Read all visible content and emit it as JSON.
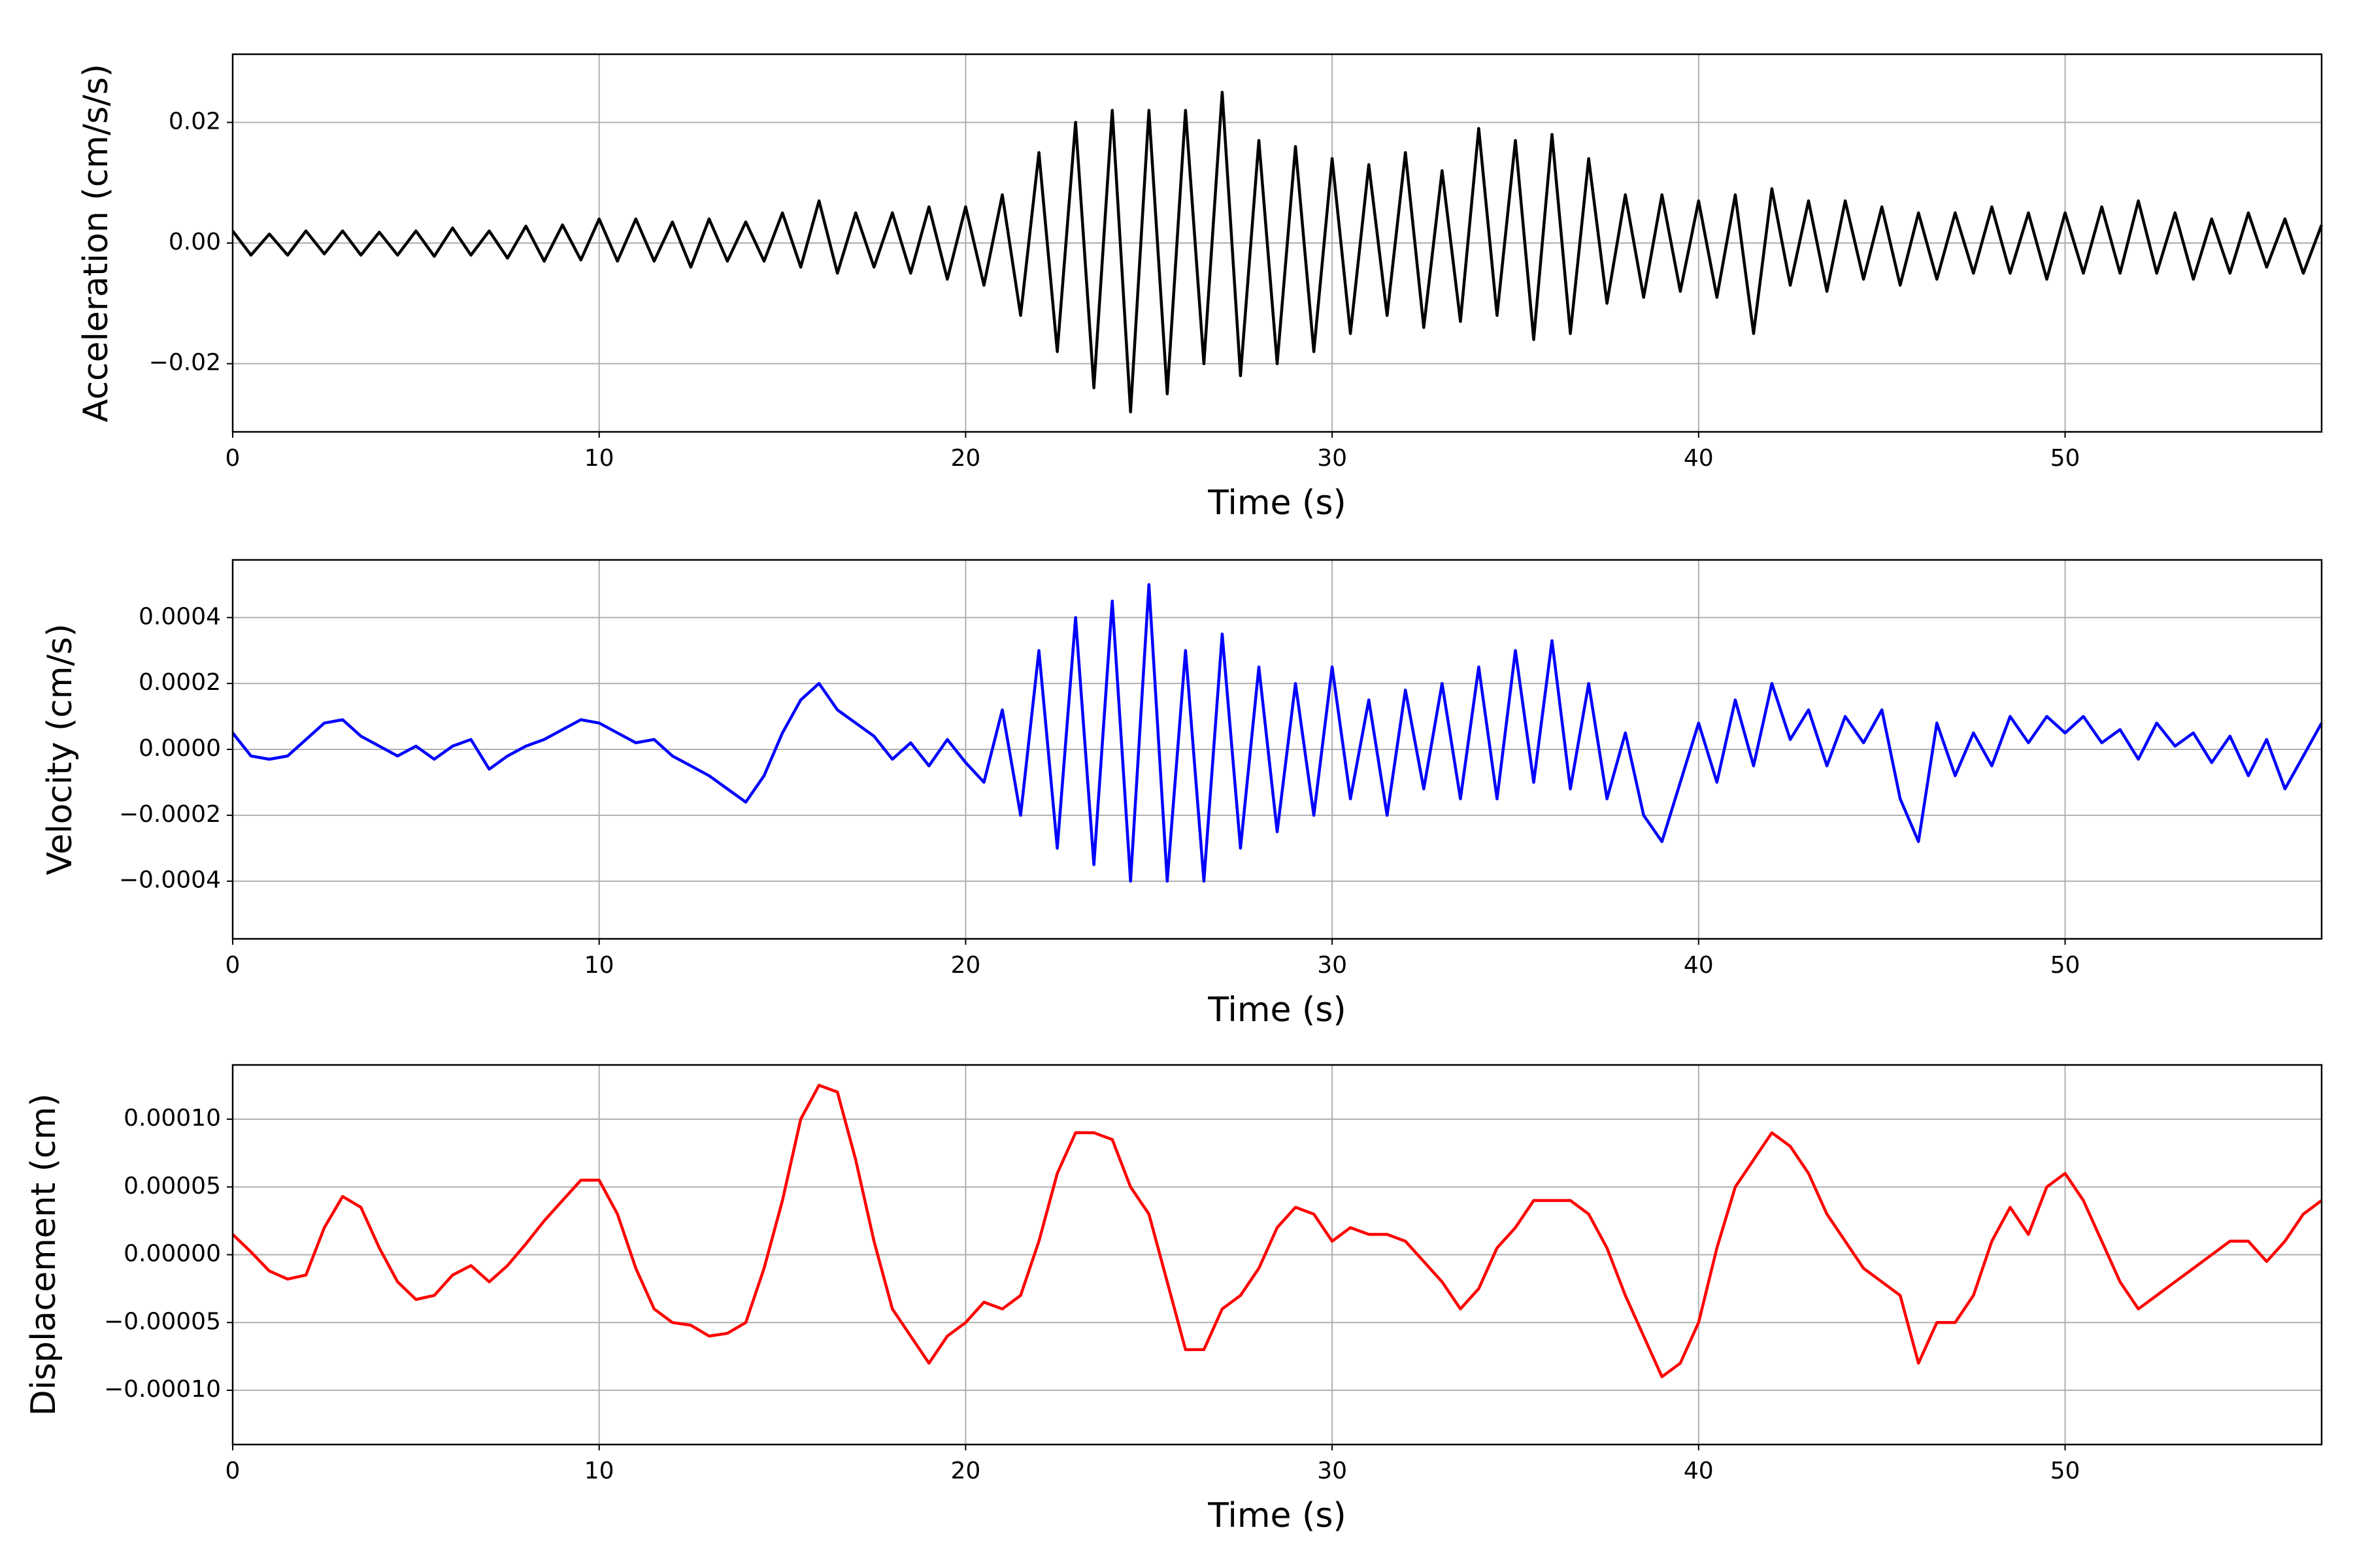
{
  "chart_data": [
    {
      "type": "line",
      "xlabel": "Time (s)",
      "ylabel": "Acceleration (cm/s/s)",
      "color": "#000000",
      "grid": true,
      "xlim": [
        0,
        57
      ],
      "xticks": [
        0,
        10,
        20,
        30,
        40,
        50
      ],
      "ylim": [
        -0.0313,
        0.0313
      ],
      "yticks": [
        {
          "value": -0.02,
          "label": "−0.02"
        },
        {
          "value": 0,
          "label": "0.00"
        },
        {
          "value": 0.02,
          "label": "0.02"
        }
      ],
      "x": [
        0,
        0.5,
        1,
        1.5,
        2,
        2.5,
        3,
        3.5,
        4,
        4.5,
        5,
        5.5,
        6,
        6.5,
        7,
        7.5,
        8,
        8.5,
        9,
        9.5,
        10,
        10.5,
        11,
        11.5,
        12,
        12.5,
        13,
        13.5,
        14,
        14.5,
        15,
        15.5,
        16,
        16.5,
        17,
        17.5,
        18,
        18.5,
        19,
        19.5,
        20,
        20.5,
        21,
        21.5,
        22,
        22.5,
        23,
        23.5,
        24,
        24.5,
        25,
        25.5,
        26,
        26.5,
        27,
        27.5,
        28,
        28.5,
        29,
        29.5,
        30,
        30.5,
        31,
        31.5,
        32,
        32.5,
        33,
        33.5,
        34,
        34.5,
        35,
        35.5,
        36,
        36.5,
        37,
        37.5,
        38,
        38.5,
        39,
        39.5,
        40,
        40.5,
        41,
        41.5,
        42,
        42.5,
        43,
        43.5,
        44,
        44.5,
        45,
        45.5,
        46,
        46.5,
        47,
        47.5,
        48,
        48.5,
        49,
        49.5,
        50,
        50.5,
        51,
        51.5,
        52,
        52.5,
        53,
        53.5,
        54,
        54.5,
        55,
        55.5,
        56,
        56.5,
        57
      ],
      "values": [
        0.002,
        -0.002,
        0.0015,
        -0.002,
        0.002,
        -0.0018,
        0.002,
        -0.002,
        0.0018,
        -0.002,
        0.002,
        -0.0022,
        0.0025,
        -0.002,
        0.002,
        -0.0025,
        0.0028,
        -0.003,
        0.003,
        -0.0028,
        0.004,
        -0.003,
        0.004,
        -0.003,
        0.0035,
        -0.004,
        0.004,
        -0.003,
        0.0035,
        -0.003,
        0.005,
        -0.004,
        0.007,
        -0.005,
        0.005,
        -0.004,
        0.005,
        -0.005,
        0.006,
        -0.006,
        0.006,
        -0.007,
        0.008,
        -0.012,
        0.015,
        -0.018,
        0.02,
        -0.024,
        0.022,
        -0.028,
        0.022,
        -0.025,
        0.022,
        -0.02,
        0.025,
        -0.022,
        0.017,
        -0.02,
        0.016,
        -0.018,
        0.014,
        -0.015,
        0.013,
        -0.012,
        0.015,
        -0.014,
        0.012,
        -0.013,
        0.019,
        -0.012,
        0.017,
        -0.016,
        0.018,
        -0.015,
        0.014,
        -0.01,
        0.008,
        -0.009,
        0.008,
        -0.008,
        0.007,
        -0.009,
        0.008,
        -0.015,
        0.009,
        -0.007,
        0.007,
        -0.008,
        0.007,
        -0.006,
        0.006,
        -0.007,
        0.005,
        -0.006,
        0.005,
        -0.005,
        0.006,
        -0.005,
        0.005,
        -0.006,
        0.005,
        -0.005,
        0.006,
        -0.005,
        0.007,
        -0.005,
        0.005,
        -0.006,
        0.004,
        -0.005,
        0.005,
        -0.004,
        0.004,
        -0.005,
        0.003
      ]
    },
    {
      "type": "line",
      "xlabel": "Time (s)",
      "ylabel": "Velocity (cm/s)",
      "color": "#0000ff",
      "grid": true,
      "xlim": [
        0,
        57
      ],
      "xticks": [
        0,
        10,
        20,
        30,
        40,
        50
      ],
      "ylim": [
        -0.000575,
        0.000575
      ],
      "yticks": [
        {
          "value": -0.0004,
          "label": "−0.0004"
        },
        {
          "value": -0.0002,
          "label": "−0.0002"
        },
        {
          "value": 0,
          "label": "0.0000"
        },
        {
          "value": 0.0002,
          "label": "0.0002"
        },
        {
          "value": 0.0004,
          "label": "0.0004"
        }
      ],
      "x": [
        0,
        0.5,
        1,
        1.5,
        2,
        2.5,
        3,
        3.5,
        4,
        4.5,
        5,
        5.5,
        6,
        6.5,
        7,
        7.5,
        8,
        8.5,
        9,
        9.5,
        10,
        10.5,
        11,
        11.5,
        12,
        12.5,
        13,
        13.5,
        14,
        14.5,
        15,
        15.5,
        16,
        16.5,
        17,
        17.5,
        18,
        18.5,
        19,
        19.5,
        20,
        20.5,
        21,
        21.5,
        22,
        22.5,
        23,
        23.5,
        24,
        24.5,
        25,
        25.5,
        26,
        26.5,
        27,
        27.5,
        28,
        28.5,
        29,
        29.5,
        30,
        30.5,
        31,
        31.5,
        32,
        32.5,
        33,
        33.5,
        34,
        34.5,
        35,
        35.5,
        36,
        36.5,
        37,
        37.5,
        38,
        38.5,
        39,
        39.5,
        40,
        40.5,
        41,
        41.5,
        42,
        42.5,
        43,
        43.5,
        44,
        44.5,
        45,
        45.5,
        46,
        46.5,
        47,
        47.5,
        48,
        48.5,
        49,
        49.5,
        50,
        50.5,
        51,
        51.5,
        52,
        52.5,
        53,
        53.5,
        54,
        54.5,
        55,
        55.5,
        56,
        56.5,
        57
      ],
      "values": [
        5e-05,
        -2e-05,
        -3e-05,
        -2e-05,
        3e-05,
        8e-05,
        9e-05,
        4e-05,
        1e-05,
        -2e-05,
        1e-05,
        -3e-05,
        1e-05,
        3e-05,
        -6e-05,
        -2e-05,
        1e-05,
        3e-05,
        6e-05,
        9e-05,
        8e-05,
        5e-05,
        2e-05,
        3e-05,
        -2e-05,
        -5e-05,
        -8e-05,
        -0.00012,
        -0.00016,
        -8e-05,
        5e-05,
        0.00015,
        0.0002,
        0.00012,
        8e-05,
        4e-05,
        -3e-05,
        2e-05,
        -5e-05,
        3e-05,
        -4e-05,
        -0.0001,
        0.00012,
        -0.0002,
        0.0003,
        -0.0003,
        0.0004,
        -0.00035,
        0.00045,
        -0.0004,
        0.0005,
        -0.0004,
        0.0003,
        -0.0004,
        0.00035,
        -0.0003,
        0.00025,
        -0.00025,
        0.0002,
        -0.0002,
        0.00025,
        -0.00015,
        0.00015,
        -0.0002,
        0.00018,
        -0.00012,
        0.0002,
        -0.00015,
        0.00025,
        -0.00015,
        0.0003,
        -0.0001,
        0.00033,
        -0.00012,
        0.0002,
        -0.00015,
        5e-05,
        -0.0002,
        -0.00028,
        -0.0001,
        8e-05,
        -0.0001,
        0.00015,
        -5e-05,
        0.0002,
        3e-05,
        0.00012,
        -5e-05,
        0.0001,
        2e-05,
        0.00012,
        -0.00015,
        -0.00028,
        8e-05,
        -8e-05,
        5e-05,
        -5e-05,
        0.0001,
        2e-05,
        0.0001,
        5e-05,
        0.0001,
        2e-05,
        6e-05,
        -3e-05,
        8e-05,
        1e-05,
        5e-05,
        -4e-05,
        4e-05,
        -8e-05,
        3e-05,
        -0.00012,
        -2e-05,
        8e-05
      ]
    },
    {
      "type": "line",
      "xlabel": "Time (s)",
      "ylabel": "Displacement (cm)",
      "color": "#ff0000",
      "grid": true,
      "xlim": [
        0,
        57
      ],
      "xticks": [
        0,
        10,
        20,
        30,
        40,
        50
      ],
      "ylim": [
        -0.00014,
        0.00014
      ],
      "yticks": [
        {
          "value": -0.0001,
          "label": "−0.00010"
        },
        {
          "value": -5e-05,
          "label": "−0.00005"
        },
        {
          "value": 0,
          "label": "0.00000"
        },
        {
          "value": 5e-05,
          "label": "0.00005"
        },
        {
          "value": 0.0001,
          "label": "0.00010"
        }
      ],
      "x": [
        0,
        0.5,
        1,
        1.5,
        2,
        2.5,
        3,
        3.5,
        4,
        4.5,
        5,
        5.5,
        6,
        6.5,
        7,
        7.5,
        8,
        8.5,
        9,
        9.5,
        10,
        10.5,
        11,
        11.5,
        12,
        12.5,
        13,
        13.5,
        14,
        14.5,
        15,
        15.5,
        16,
        16.5,
        17,
        17.5,
        18,
        18.5,
        19,
        19.5,
        20,
        20.5,
        21,
        21.5,
        22,
        22.5,
        23,
        23.5,
        24,
        24.5,
        25,
        25.5,
        26,
        26.5,
        27,
        27.5,
        28,
        28.5,
        29,
        29.5,
        30,
        30.5,
        31,
        31.5,
        32,
        32.5,
        33,
        33.5,
        34,
        34.5,
        35,
        35.5,
        36,
        36.5,
        37,
        37.5,
        38,
        38.5,
        39,
        39.5,
        40,
        40.5,
        41,
        41.5,
        42,
        42.5,
        43,
        43.5,
        44,
        44.5,
        45,
        45.5,
        46,
        46.5,
        47,
        47.5,
        48,
        48.5,
        49,
        49.5,
        50,
        50.5,
        51,
        51.5,
        52,
        52.5,
        53,
        53.5,
        54,
        54.5,
        55,
        55.5,
        56,
        56.5,
        57
      ],
      "values": [
        1.5e-05,
        2e-06,
        -1.2e-05,
        -1.8e-05,
        -1.5e-05,
        2e-05,
        4.3e-05,
        3.5e-05,
        5e-06,
        -2e-05,
        -3.3e-05,
        -3e-05,
        -1.5e-05,
        -8e-06,
        -2e-05,
        -8e-06,
        8e-06,
        2.5e-05,
        4e-05,
        5.5e-05,
        5.5e-05,
        3e-05,
        -1e-05,
        -4e-05,
        -5e-05,
        -5.2e-05,
        -6e-05,
        -5.8e-05,
        -5e-05,
        -1e-05,
        4e-05,
        0.0001,
        0.000125,
        0.00012,
        7e-05,
        1e-05,
        -4e-05,
        -6e-05,
        -8e-05,
        -6e-05,
        -5e-05,
        -3.5e-05,
        -4e-05,
        -3e-05,
        1e-05,
        6e-05,
        9e-05,
        9e-05,
        8.5e-05,
        5e-05,
        3e-05,
        -2e-05,
        -7e-05,
        -7e-05,
        -4e-05,
        -3e-05,
        -1e-05,
        2e-05,
        3.5e-05,
        3e-05,
        1e-05,
        2e-05,
        1.5e-05,
        1.5e-05,
        1e-05,
        -5e-06,
        -2e-05,
        -4e-05,
        -2.5e-05,
        5e-06,
        2e-05,
        4e-05,
        4e-05,
        4e-05,
        3e-05,
        5e-06,
        -3e-05,
        -6e-05,
        -9e-05,
        -8e-05,
        -5e-05,
        5e-06,
        5e-05,
        7e-05,
        9e-05,
        8e-05,
        6e-05,
        3e-05,
        1e-05,
        -1e-05,
        -2e-05,
        -3e-05,
        -8e-05,
        -5e-05,
        -5e-05,
        -3e-05,
        1e-05,
        3.5e-05,
        1.5e-05,
        5e-05,
        6e-05,
        4e-05,
        1e-05,
        -2e-05,
        -4e-05,
        -3e-05,
        -2e-05,
        -1e-05,
        0,
        1e-05,
        1e-05,
        -5e-06,
        1e-05,
        3e-05,
        4e-05
      ]
    }
  ]
}
